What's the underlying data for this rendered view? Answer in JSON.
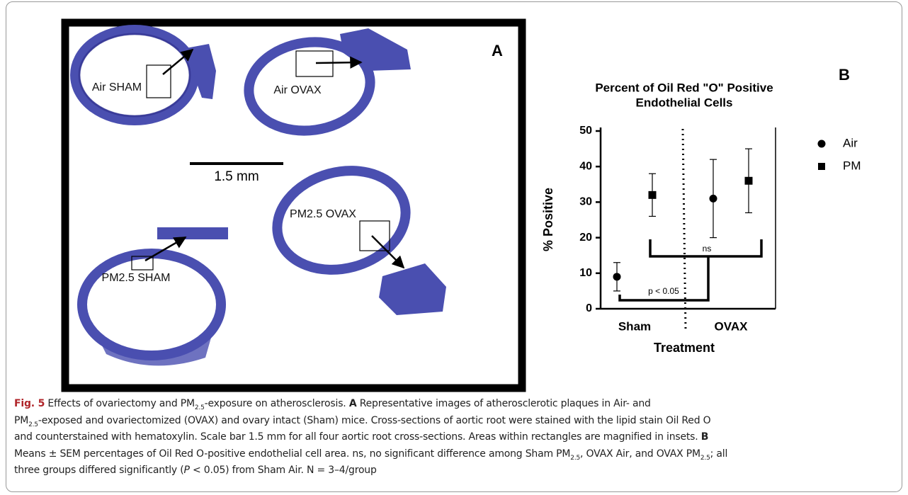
{
  "panel_a": {
    "label": "A",
    "sections": [
      "Air SHAM",
      "Air OVAX",
      "PM2.5 SHAM",
      "PM2.5 OVAX"
    ],
    "scale_bar": "1.5 mm"
  },
  "chart_data": {
    "type": "dot",
    "panel_label": "B",
    "title": [
      "Percent of Oil Red \"O\" Positive",
      "Endothelial Cells"
    ],
    "x_label": "Treatment",
    "y_label": "% Positive",
    "categories": [
      "Sham",
      "OVAX"
    ],
    "series": [
      {
        "name": "Air",
        "color": "#000000",
        "marker": "circle",
        "values": [
          9,
          31
        ],
        "errors": [
          4,
          11
        ]
      },
      {
        "name": "PM",
        "color": "#000000",
        "marker": "square",
        "values": [
          32,
          36
        ],
        "errors": [
          6,
          9
        ]
      }
    ],
    "ylim": [
      0,
      50
    ],
    "yticks": [
      0,
      10,
      20,
      30,
      40,
      50
    ],
    "annotations": [
      "ns",
      "p < 0.05"
    ]
  },
  "caption": [
    [
      {
        "text": "Fig. 5",
        "style": "b"
      },
      {
        "text": "  Effects of ovariectomy and PM"
      },
      {
        "text": "2.5",
        "style": "sub"
      },
      {
        "text": "-exposure on atherosclerosis. "
      },
      {
        "text": "A",
        "style": "b"
      },
      {
        "text": " Representative images of atherosclerotic plaques in Air- and"
      }
    ],
    [
      {
        "text": "PM"
      },
      {
        "text": "2.5",
        "style": "sub"
      },
      {
        "text": "-exposed and ovariectomized (OVAX) and ovary intact (Sham) mice. Cross-sections of aortic root were stained with the lipid stain Oil Red O"
      }
    ],
    [
      {
        "text": "and counterstained with hematoxylin. Scale bar 1.5 mm for all four aortic root cross-sections. Areas within rectangles are magnified in insets. "
      },
      {
        "text": "B",
        "style": "b"
      }
    ],
    [
      {
        "text": "Means ± SEM percentages of Oil Red O-positive endothelial cell area. ns, no significant difference among Sham PM"
      },
      {
        "text": "2.5",
        "style": "sub"
      },
      {
        "text": ", OVAX Air, and OVAX PM"
      },
      {
        "text": "2.5",
        "style": "sub"
      },
      {
        "text": "; all"
      }
    ],
    [
      {
        "text": "three groups differed significantly ("
      },
      {
        "text": "P",
        "style": "i"
      },
      {
        "text": " < 0.05) from Sham Air. N = 3–4/group"
      }
    ]
  ]
}
